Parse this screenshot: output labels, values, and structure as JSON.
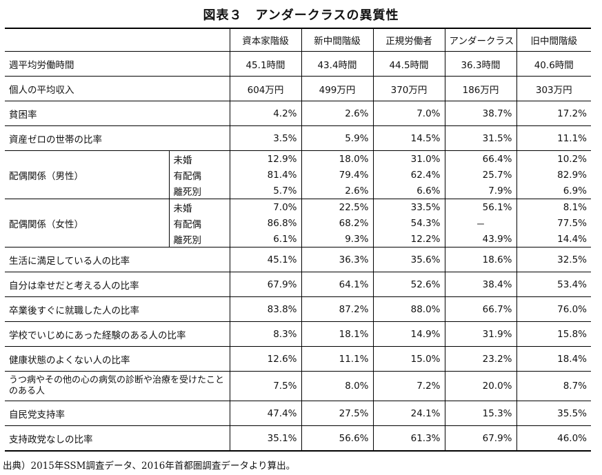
{
  "title": "図表３　アンダークラスの異質性",
  "table": {
    "columns": [
      "資本家階級",
      "新中間階級",
      "正規労働者",
      "アンダークラス",
      "旧中間階級"
    ],
    "rows": [
      {
        "label": "週平均労働時間",
        "values": [
          "45.1時間",
          "43.4時間",
          "44.5時間",
          "36.3時間",
          "40.6時間"
        ]
      },
      {
        "label": "個人の平均収入",
        "values": [
          "604万円",
          "499万円",
          "370万円",
          "186万円",
          "303万円"
        ]
      },
      {
        "label": "貧困率",
        "values": [
          "4.2%",
          "2.6%",
          "7.0%",
          "38.7%",
          "17.2%"
        ]
      },
      {
        "label": "資産ゼロの世帯の比率",
        "values": [
          "3.5%",
          "5.9%",
          "14.5%",
          "31.5%",
          "11.1%"
        ]
      },
      {
        "label": "配偶関係（男性）",
        "sub": [
          {
            "label": "未婚",
            "values": [
              "12.9%",
              "18.0%",
              "31.0%",
              "66.4%",
              "10.2%"
            ]
          },
          {
            "label": "有配偶",
            "values": [
              "81.4%",
              "79.4%",
              "62.4%",
              "25.7%",
              "82.9%"
            ]
          },
          {
            "label": "離死別",
            "values": [
              "5.7%",
              "2.6%",
              "6.6%",
              "7.9%",
              "6.9%"
            ]
          }
        ]
      },
      {
        "label": "配偶関係（女性）",
        "sub": [
          {
            "label": "未婚",
            "values": [
              "7.0%",
              "22.5%",
              "33.5%",
              "56.1%",
              "8.1%"
            ]
          },
          {
            "label": "有配偶",
            "values": [
              "86.8%",
              "68.2%",
              "54.3%",
              "－",
              "77.5%"
            ]
          },
          {
            "label": "離死別",
            "values": [
              "6.1%",
              "9.3%",
              "12.2%",
              "43.9%",
              "14.4%"
            ]
          }
        ]
      },
      {
        "label": "生活に満足している人の比率",
        "values": [
          "45.1%",
          "36.3%",
          "35.6%",
          "18.6%",
          "32.5%"
        ]
      },
      {
        "label": "自分は幸せだと考える人の比率",
        "values": [
          "67.9%",
          "64.1%",
          "52.6%",
          "38.4%",
          "53.4%"
        ]
      },
      {
        "label": "卒業後すぐに就職した人の比率",
        "values": [
          "83.8%",
          "87.2%",
          "88.0%",
          "66.7%",
          "76.0%"
        ]
      },
      {
        "label": "学校でいじめにあった経験のある人の比率",
        "values": [
          "8.3%",
          "18.1%",
          "14.9%",
          "31.9%",
          "15.8%"
        ]
      },
      {
        "label": "健康状態のよくない人の比率",
        "values": [
          "12.6%",
          "11.1%",
          "15.0%",
          "23.2%",
          "18.4%"
        ]
      },
      {
        "label": "うつ病やその他の心の病気の診断や治療を受けたことのある人",
        "values": [
          "7.5%",
          "8.0%",
          "7.2%",
          "20.0%",
          "8.7%"
        ]
      },
      {
        "label": "自民党支持率",
        "values": [
          "47.4%",
          "27.5%",
          "24.1%",
          "15.3%",
          "35.5%"
        ]
      },
      {
        "label": "支持政党なしの比率",
        "values": [
          "35.1%",
          "56.6%",
          "61.3%",
          "67.9%",
          "46.0%"
        ]
      }
    ]
  },
  "source": "出典）2015年SSM調査データ、2016年首都圏調査データより算出。"
}
